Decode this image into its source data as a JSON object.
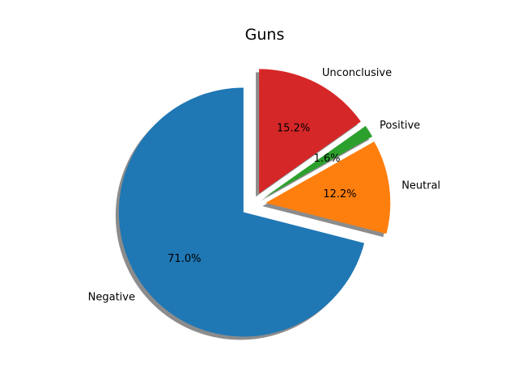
{
  "chart_data": {
    "type": "pie",
    "title": "Guns",
    "start_angle_deg": 90,
    "direction": "counterclockwise",
    "shadow": true,
    "slices": [
      {
        "label": "Negative",
        "value": 71.0,
        "pct_label": "71.0%",
        "color": "#1f77b4",
        "exploded": true
      },
      {
        "label": "Neutral",
        "value": 12.2,
        "pct_label": "12.2%",
        "color": "#ff7f0e",
        "exploded": true
      },
      {
        "label": "Positive",
        "value": 1.6,
        "pct_label": "1.6%",
        "color": "#2ca02c",
        "exploded": true
      },
      {
        "label": "Unconclusive",
        "value": 15.2,
        "pct_label": "15.2%",
        "color": "#d62728",
        "exploded": true
      }
    ]
  }
}
